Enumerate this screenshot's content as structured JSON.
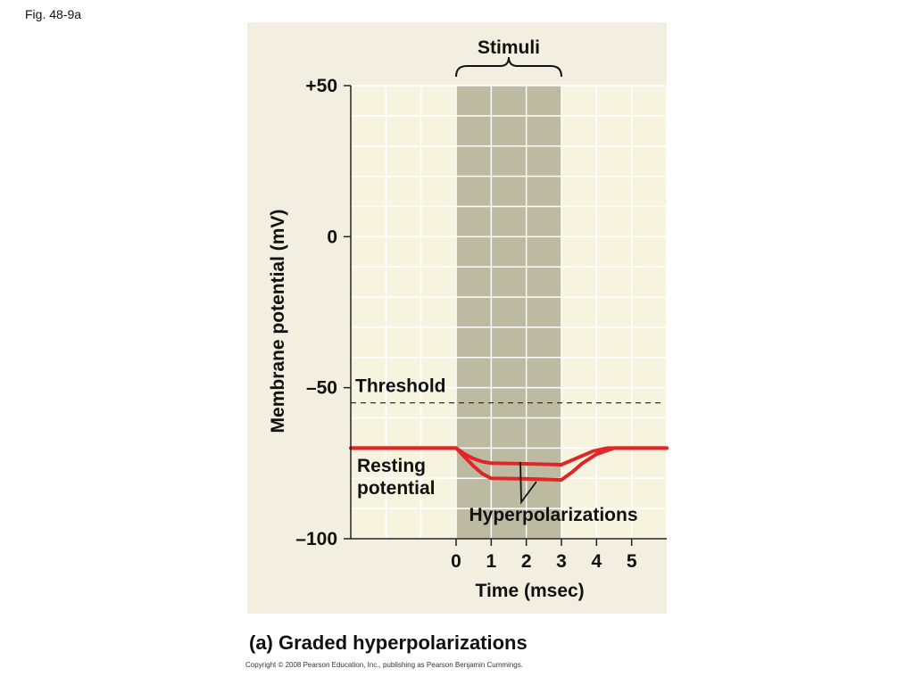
{
  "figure_label": "Fig. 48-9a",
  "caption": "(a) Graded hyperpolarizations",
  "copyright": "Copyright © 2008 Pearson Education, Inc., publishing as Pearson Benjamin Cummings.",
  "colors": {
    "panel": "#f2efe1",
    "plot_background": "#f6f4df",
    "stimulus_band": "#bdbaa2",
    "grid": "#ffffff",
    "trace": "#e02626",
    "threshold": "#333333"
  },
  "chart_data": {
    "type": "line",
    "title": "",
    "xlabel": "Time (msec)",
    "ylabel": "Membrane potential (mV)",
    "xlim": [
      -3,
      6
    ],
    "ylim": [
      -100,
      50
    ],
    "x_ticks": [
      "0",
      "1",
      "2",
      "3",
      "4",
      "5"
    ],
    "y_ticks": [
      {
        "value": 50,
        "label": "+50"
      },
      {
        "value": 0,
        "label": "0"
      },
      {
        "value": -50,
        "label": "–50"
      },
      {
        "value": -100,
        "label": "–100"
      }
    ],
    "grid": true,
    "stimulus": {
      "label": "Stimuli",
      "start": 0,
      "end": 3
    },
    "threshold": {
      "label": "Threshold",
      "value": -55
    },
    "series": [
      {
        "x": [
          -3,
          0,
          0.25,
          0.5,
          0.75,
          1,
          2,
          3,
          3.3,
          3.6,
          3.9,
          4.3,
          6
        ],
        "y": [
          -70,
          -70,
          -72,
          -73.5,
          -74.5,
          -75,
          -75.2,
          -75.5,
          -74,
          -72.5,
          -71,
          -70,
          -70
        ]
      },
      {
        "x": [
          -3,
          0,
          0.25,
          0.5,
          0.75,
          1,
          2,
          3,
          3.3,
          3.6,
          4,
          4.5,
          6
        ],
        "y": [
          -70,
          -70,
          -73,
          -76,
          -78.5,
          -80,
          -80.2,
          -80.5,
          -78,
          -75,
          -72,
          -70,
          -70
        ]
      }
    ],
    "annotations": [
      {
        "lines": [
          "Resting",
          "potential"
        ]
      },
      {
        "lines": [
          "Hyperpolarizations"
        ]
      }
    ]
  }
}
